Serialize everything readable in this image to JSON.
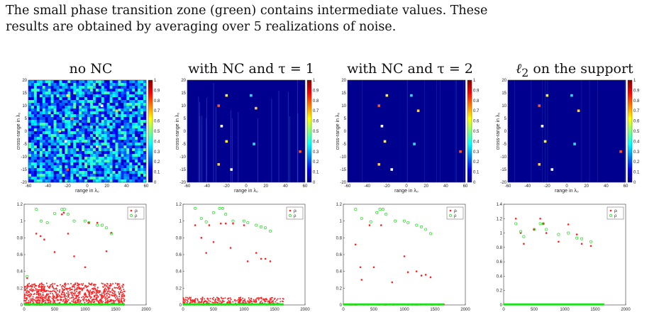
{
  "caption": {
    "line1": "The small phase transition zone (green) contains intermediate values. These",
    "line2": "results are obtained by averaging over 5 realizations of noise."
  },
  "panel_titles": [
    {
      "text": "no NC"
    },
    {
      "text": "with NC and τ = 1"
    },
    {
      "text": "with NC and τ = 2"
    },
    {
      "text_prefix": "ℓ",
      "text_sub": "2",
      "text_rest": " on the support"
    }
  ],
  "colors": {
    "red": "#ff2020",
    "green": "#22dd22",
    "axis": "#333333"
  },
  "chart_data": [
    {
      "type": "heatmap",
      "title": "no NC",
      "xlabel": "range in λ₀",
      "ylabel": "cross-range in λ₀",
      "xlim": [
        -60,
        60
      ],
      "ylim": [
        -20,
        20
      ],
      "xticks": [
        -60,
        -40,
        -20,
        0,
        20,
        40,
        60
      ],
      "yticks": [
        20,
        15,
        10,
        5,
        0,
        -5,
        -10,
        -15,
        -20
      ],
      "colorbar_ticks": [
        "1",
        "0.9",
        "0.8",
        "0.7",
        "0.6",
        "0.5",
        "0.4",
        "0.3",
        "0.2",
        "0.1",
        "0"
      ],
      "background": "noisy",
      "points": [
        [
          -20,
          14
        ],
        [
          -30,
          7
        ],
        [
          -15,
          5
        ],
        [
          -28,
          0
        ],
        [
          -22,
          -4
        ],
        [
          10,
          -6
        ],
        [
          -30,
          -12
        ],
        [
          -20,
          -15
        ],
        [
          30,
          8
        ],
        [
          15,
          10
        ]
      ]
    },
    {
      "type": "heatmap",
      "title": "with NC and τ = 1",
      "xlabel": "range in λ₀",
      "ylabel": "cross-range in λ₀",
      "xlim": [
        -60,
        60
      ],
      "ylim": [
        -20,
        20
      ],
      "xticks": [
        -60,
        -40,
        -20,
        0,
        20,
        40,
        60
      ],
      "yticks": [
        20,
        15,
        10,
        5,
        0,
        -5,
        -10,
        -15,
        -20
      ],
      "colorbar_ticks": [
        "1",
        "0.9",
        "0.8",
        "0.7",
        "0.6",
        "0.5",
        "0.4",
        "0.3",
        "0.2",
        "0.1",
        "0"
      ],
      "background": "streaks",
      "points": [
        [
          -20,
          14
        ],
        [
          5,
          14
        ],
        [
          -28,
          10
        ],
        [
          10,
          9
        ],
        [
          -25,
          2
        ],
        [
          -20,
          -4
        ],
        [
          8,
          -5
        ],
        [
          55,
          -8
        ],
        [
          -28,
          -13
        ],
        [
          -15,
          -15
        ]
      ]
    },
    {
      "type": "heatmap",
      "title": "with NC and τ = 2",
      "xlabel": "range in λ₀",
      "ylabel": "cross-range in λ₀",
      "xlim": [
        -60,
        60
      ],
      "ylim": [
        -20,
        20
      ],
      "xticks": [
        -60,
        -40,
        -20,
        0,
        20,
        40,
        60
      ],
      "yticks": [
        20,
        15,
        10,
        5,
        0,
        -5,
        -10,
        -15,
        -20
      ],
      "colorbar_ticks": [
        "1",
        "0.9",
        "0.8",
        "0.7",
        "0.6",
        "0.5",
        "0.4",
        "0.3",
        "0.2",
        "0.1",
        "0"
      ],
      "background": "sparse",
      "points": [
        [
          -20,
          14
        ],
        [
          5,
          14
        ],
        [
          -28,
          10
        ],
        [
          12,
          8
        ],
        [
          -25,
          2
        ],
        [
          -22,
          -4
        ],
        [
          8,
          -5
        ],
        [
          55,
          -8
        ],
        [
          -28,
          -13
        ],
        [
          -15,
          -15
        ]
      ]
    },
    {
      "type": "heatmap",
      "title": "ℓ₂ on the support",
      "xlabel": "range in λ₀",
      "ylabel": "cross-range in λ₀",
      "xlim": [
        -60,
        60
      ],
      "ylim": [
        -20,
        20
      ],
      "xticks": [
        -60,
        -40,
        -20,
        0,
        20,
        40,
        60
      ],
      "yticks": [
        20,
        15,
        10,
        5,
        0,
        -5,
        -10,
        -15,
        -20
      ],
      "colorbar_ticks": [
        "1",
        "0.9",
        "0.8",
        "0.7",
        "0.6",
        "0.5",
        "0.4",
        "0.3",
        "0.2",
        "0.1",
        "0"
      ],
      "background": "sparse",
      "points": [
        [
          -20,
          14
        ],
        [
          5,
          14
        ],
        [
          -28,
          10
        ],
        [
          12,
          8
        ],
        [
          -25,
          2
        ],
        [
          -22,
          -4
        ],
        [
          8,
          -5
        ],
        [
          55,
          -8
        ],
        [
          -28,
          -13
        ],
        [
          -15,
          -15
        ]
      ]
    },
    {
      "type": "scatter",
      "xlim": [
        0,
        2000
      ],
      "ylim": [
        0,
        1.2
      ],
      "xticks": [
        "0",
        "500",
        "1000",
        "1500",
        "2000"
      ],
      "yticks": [
        "0",
        "0.2",
        "0.4",
        "0.6",
        "0.8",
        "1",
        "1.2"
      ],
      "legend": [
        "ρₗ",
        "ρ"
      ],
      "legend_position": "top-right",
      "red_floor": [
        0,
        0.26
      ],
      "series": [
        {
          "name": "ρₗ",
          "color": "red",
          "x": [
            50,
            200,
            270,
            330,
            500,
            620,
            650,
            720,
            820,
            1000,
            1060,
            1200,
            1350,
            1430
          ],
          "y": [
            0.32,
            0.85,
            0.82,
            0.78,
            0.63,
            1.08,
            1.1,
            0.85,
            0.58,
            0.45,
            0.98,
            0.98,
            0.64,
            0.86
          ]
        },
        {
          "name": "ρ",
          "color": "green",
          "x": [
            50,
            200,
            280,
            380,
            500,
            620,
            660,
            720,
            820,
            1000,
            1060,
            1200,
            1280,
            1350,
            1430
          ],
          "y": [
            0.34,
            1.14,
            1.0,
            0.98,
            1.09,
            1.14,
            1.14,
            1.08,
            1.0,
            1.0,
            0.98,
            0.95,
            0.95,
            0.92,
            0.85
          ]
        }
      ],
      "zero_line_range": [
        0,
        1650
      ]
    },
    {
      "type": "scatter",
      "xlim": [
        0,
        2000
      ],
      "ylim": [
        0,
        1.2
      ],
      "xticks": [
        "0",
        "500",
        "1000",
        "1500",
        "2000"
      ],
      "yticks": [
        "0",
        "0.2",
        "0.4",
        "0.6",
        "0.8",
        "1",
        "1.2"
      ],
      "legend": [
        "ρₗ",
        "ρ"
      ],
      "legend_position": "top-right",
      "red_floor": [
        0,
        0.09
      ],
      "series": [
        {
          "name": "ρₗ",
          "color": "red",
          "x": [
            200,
            300,
            380,
            430,
            500,
            620,
            700,
            780,
            820,
            1000,
            1060,
            1200,
            1280,
            1350,
            1430
          ],
          "y": [
            0.95,
            0.8,
            0.62,
            0.95,
            0.75,
            0.97,
            0.97,
            0.68,
            0.97,
            0.95,
            0.52,
            0.62,
            0.55,
            0.55,
            0.52
          ]
        },
        {
          "name": "ρ",
          "color": "green",
          "x": [
            200,
            300,
            380,
            500,
            600,
            650,
            700,
            820,
            1000,
            1060,
            1200,
            1280,
            1350,
            1430
          ],
          "y": [
            1.15,
            1.03,
            0.99,
            1.1,
            1.15,
            1.15,
            1.08,
            1.0,
            1.0,
            0.98,
            0.95,
            0.93,
            0.92,
            0.88
          ]
        }
      ],
      "zero_line_range": [
        0,
        1650
      ]
    },
    {
      "type": "scatter",
      "xlim": [
        0,
        2000
      ],
      "ylim": [
        0,
        1.2
      ],
      "xticks": [
        "0",
        "500",
        "1000",
        "1500",
        "2000"
      ],
      "yticks": [
        "0",
        "0.2",
        "0.4",
        "0.6",
        "0.8",
        "1",
        "1.2"
      ],
      "legend": [
        "ρₗ",
        "ρ"
      ],
      "legend_position": "top-right",
      "red_floor": [
        0,
        0.01
      ],
      "series": [
        {
          "name": "ρₗ",
          "color": "red",
          "x": [
            200,
            280,
            300,
            430,
            500,
            620,
            800,
            1000,
            1060,
            1200,
            1280,
            1350,
            1430
          ],
          "y": [
            0.72,
            0.45,
            0.3,
            0.95,
            0.45,
            0.95,
            0.27,
            0.58,
            0.39,
            0.4,
            0.35,
            0.36,
            0.33
          ]
        },
        {
          "name": "ρ",
          "color": "green",
          "x": [
            200,
            300,
            450,
            550,
            600,
            650,
            700,
            850,
            1000,
            1060,
            1200,
            1280,
            1350,
            1430
          ],
          "y": [
            1.14,
            1.03,
            0.99,
            1.1,
            1.14,
            1.14,
            1.08,
            1.0,
            1.0,
            0.98,
            0.95,
            0.93,
            0.9,
            0.85
          ]
        }
      ],
      "zero_line_range": [
        0,
        1650
      ]
    },
    {
      "type": "scatter",
      "xlim": [
        0,
        2000
      ],
      "ylim": [
        0,
        1.4
      ],
      "xticks": [
        "0",
        "500",
        "1000",
        "1500",
        "2000"
      ],
      "yticks": [
        "0",
        "0.2",
        "0.4",
        "0.6",
        "0.8",
        "1",
        "1.2",
        "1.4"
      ],
      "legend": [
        "ρₗ",
        "ρ"
      ],
      "legend_position": "top-right",
      "red_floor": [
        0,
        0.0
      ],
      "series": [
        {
          "name": "ρₗ",
          "color": "red",
          "x": [
            200,
            280,
            330,
            500,
            600,
            650,
            700,
            900,
            1060,
            1200,
            1280,
            1430
          ],
          "y": [
            1.2,
            1.0,
            0.85,
            1.05,
            1.2,
            1.13,
            1.0,
            0.88,
            1.12,
            0.98,
            0.85,
            0.82
          ]
        },
        {
          "name": "ρ",
          "color": "green",
          "x": [
            200,
            280,
            330,
            500,
            600,
            650,
            700,
            900,
            1060,
            1200,
            1280,
            1430
          ],
          "y": [
            1.13,
            1.02,
            0.95,
            1.05,
            1.13,
            1.13,
            1.05,
            0.98,
            1.0,
            0.93,
            0.92,
            0.88
          ]
        }
      ],
      "zero_line_range": [
        0,
        1650
      ]
    }
  ]
}
